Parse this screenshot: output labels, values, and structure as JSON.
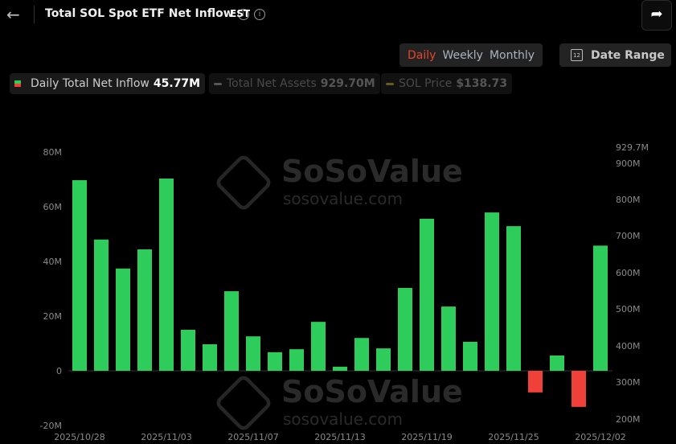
{
  "header": {
    "title": "Total SOL Spot ETF Net Inflow",
    "timezone": "EST",
    "back_icon": "arrow-left-icon",
    "share_icon": "share-icon"
  },
  "controls": {
    "periods": [
      "Daily",
      "Weekly",
      "Monthly"
    ],
    "active_period": "Daily",
    "date_range_label": "Date Range",
    "calendar_day": "12"
  },
  "legend": [
    {
      "label": "Daily Total Net Inflow",
      "value": "45.77M",
      "active": true
    },
    {
      "label": "Total Net Assets",
      "value": "929.70M",
      "active": false,
      "color": "#555555"
    },
    {
      "label": "SOL Price",
      "value": "$138.73",
      "active": false,
      "color": "#6b5a1e"
    }
  ],
  "watermark": {
    "brand": "SoSoValue",
    "site": "sosovalue.com"
  },
  "chart_data": {
    "type": "bar",
    "categories": [
      "2025/10/28",
      "2025/10/29",
      "2025/10/30",
      "2025/10/31",
      "2025/11/03",
      "2025/11/04",
      "2025/11/05",
      "2025/11/06",
      "2025/11/07",
      "2025/11/10",
      "2025/11/11",
      "2025/11/12",
      "2025/11/13",
      "2025/11/14",
      "2025/11/17",
      "2025/11/18",
      "2025/11/19",
      "2025/11/20",
      "2025/11/21",
      "2025/11/24",
      "2025/11/25",
      "2025/11/26",
      "2025/11/28",
      "2025/12/01",
      "2025/12/02"
    ],
    "x_tick_labels": [
      "2025/10/28",
      "2025/11/03",
      "2025/11/07",
      "2025/11/13",
      "2025/11/19",
      "2025/11/25",
      "2025/12/02"
    ],
    "series": [
      {
        "name": "Daily Total Net Inflow",
        "unit": "M",
        "values": [
          69.7,
          48.0,
          37.4,
          44.4,
          70.3,
          15.0,
          9.7,
          29.1,
          12.6,
          6.8,
          7.9,
          17.9,
          1.5,
          12.0,
          8.2,
          30.3,
          55.6,
          23.5,
          10.6,
          57.9,
          52.9,
          -7.9,
          5.6,
          -13.2,
          45.77
        ]
      }
    ],
    "ylim": [
      -20,
      80
    ],
    "yticks": [
      "80M",
      "60M",
      "40M",
      "20M",
      "0",
      "-20M"
    ],
    "y2ticks": [
      "929.7M",
      "900M",
      "800M",
      "700M",
      "600M",
      "500M",
      "400M",
      "300M",
      "200M"
    ],
    "positive_color": "#2ecc5a",
    "negative_color": "#f0403a"
  }
}
